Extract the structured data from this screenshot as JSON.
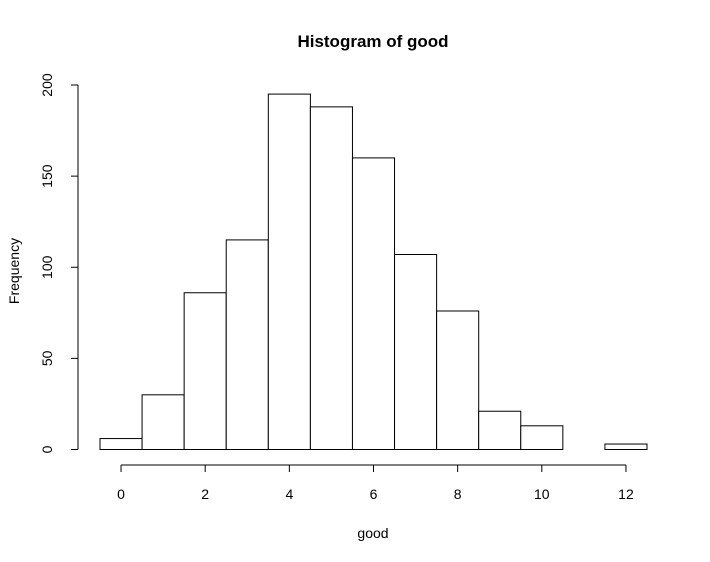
{
  "chart_data": {
    "type": "bar",
    "title": "Histogram of good",
    "xlabel": "good",
    "ylabel": "Frequency",
    "bins": [
      {
        "from": -0.5,
        "to": 0.5,
        "value": 6
      },
      {
        "from": 0.5,
        "to": 1.5,
        "value": 30
      },
      {
        "from": 1.5,
        "to": 2.5,
        "value": 86
      },
      {
        "from": 2.5,
        "to": 3.5,
        "value": 115
      },
      {
        "from": 3.5,
        "to": 4.5,
        "value": 195
      },
      {
        "from": 4.5,
        "to": 5.5,
        "value": 188
      },
      {
        "from": 5.5,
        "to": 6.5,
        "value": 160
      },
      {
        "from": 6.5,
        "to": 7.5,
        "value": 107
      },
      {
        "from": 7.5,
        "to": 8.5,
        "value": 76
      },
      {
        "from": 8.5,
        "to": 9.5,
        "value": 21
      },
      {
        "from": 9.5,
        "to": 10.5,
        "value": 13
      },
      {
        "from": 10.5,
        "to": 11.5,
        "value": 0
      },
      {
        "from": 11.5,
        "to": 12.5,
        "value": 3
      }
    ],
    "xlim": [
      -0.5,
      12.5
    ],
    "ylim": [
      0,
      200
    ],
    "x_ticks": [
      0,
      2,
      4,
      6,
      8,
      10,
      12
    ],
    "y_ticks": [
      0,
      50,
      100,
      150,
      200
    ],
    "bar_fill": "#ffffff",
    "bar_stroke": "#000000",
    "grid": false,
    "legend": "none"
  }
}
